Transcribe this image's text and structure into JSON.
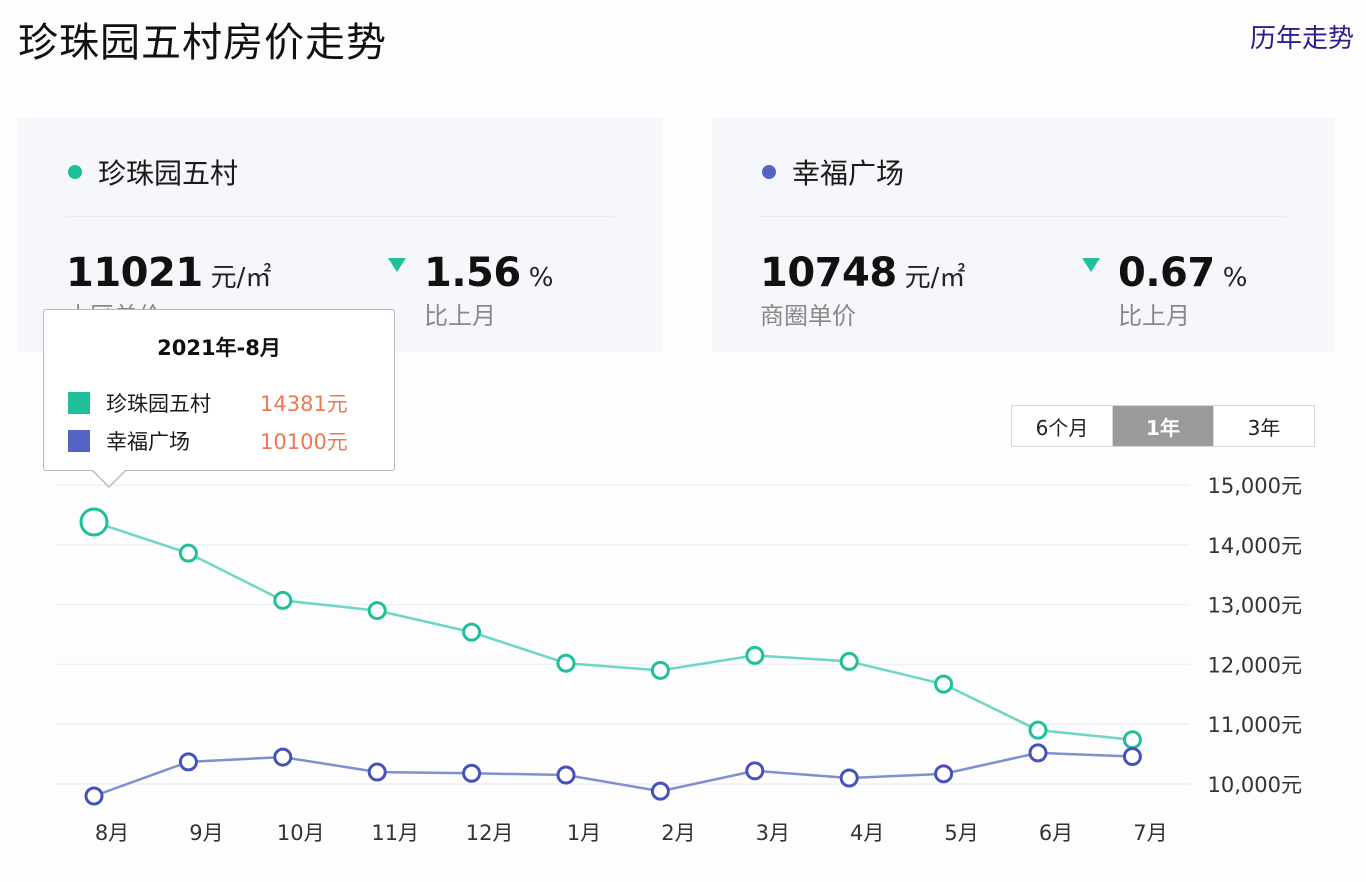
{
  "header": {
    "title": "珍珠园五村房价走势",
    "history_link": "历年走势"
  },
  "colors": {
    "community": "#1fbf9c",
    "district": "#4652b8",
    "district_line": "#7f8fcf",
    "community_line": "#6ed6c4",
    "down_arrow": "#1fc19a",
    "tooltip_value": "#f07752"
  },
  "cards": {
    "community": {
      "name": "珍珠园五村",
      "price": "11021",
      "unit": "元/㎡",
      "price_label": "小区单价",
      "change_icon": "triangle-down-icon",
      "change": "1.56",
      "change_unit": "%",
      "change_label": "比上月"
    },
    "district": {
      "name": "幸福广场",
      "price": "10748",
      "unit": "元/㎡",
      "price_label": "商圈单价",
      "change_icon": "triangle-down-icon",
      "change": "0.67",
      "change_unit": "%",
      "change_label": "比上月"
    }
  },
  "range_selector": {
    "options": [
      "6个月",
      "1年",
      "3年"
    ],
    "selected": "1年"
  },
  "tooltip": {
    "title": "2021年-8月",
    "rows": [
      {
        "name": "珍珠园五村",
        "value": "14381元"
      },
      {
        "name": "幸福广场",
        "value": "10100元"
      }
    ]
  },
  "chart_data": {
    "type": "line",
    "title": "珍珠园五村房价走势",
    "xlabel": "",
    "ylabel": "",
    "categories": [
      "8月",
      "9月",
      "10月",
      "11月",
      "12月",
      "1月",
      "2月",
      "3月",
      "4月",
      "5月",
      "6月",
      "7月"
    ],
    "series": [
      {
        "name": "珍珠园五村",
        "color": "#1fbf9c",
        "values": [
          14381,
          13860,
          13070,
          12900,
          12540,
          12020,
          11900,
          12150,
          12050,
          11670,
          10900,
          10740
        ]
      },
      {
        "name": "幸福广场",
        "color": "#4652b8",
        "values": [
          10100,
          10370,
          10450,
          10200,
          10180,
          10150,
          9880,
          10220,
          10100,
          10170,
          10520,
          10460
        ]
      }
    ],
    "y_ticks": [
      "15,000元",
      "14,000元",
      "13,000元",
      "12,000元",
      "11,000元",
      "10,000元"
    ],
    "ylim": [
      9800,
      15000
    ],
    "grid": true,
    "y_axis_position": "right",
    "highlighted_point": {
      "category": "8月",
      "label": "2021年-8月"
    }
  }
}
